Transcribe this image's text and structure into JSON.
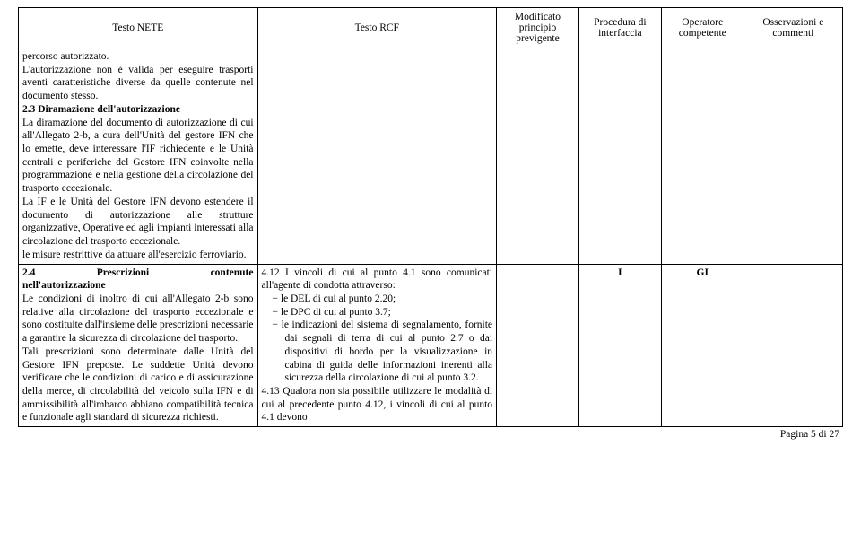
{
  "headers": {
    "c1": "Testo NETE",
    "c2": "Testo RCF",
    "c3": "Modificato principio previgente",
    "c4": "Procedura di interfaccia",
    "c5": "Operatore competente",
    "c6": "Osservazioni e commenti"
  },
  "row1": {
    "c1_p1": "percorso autorizzato.",
    "c1_p2": "L'autorizzazione non è valida per eseguire trasporti aventi caratteristiche diverse da quelle contenute nel documento stesso.",
    "c1_p3_title": "2.3 Diramazione dell'autorizzazione",
    "c1_p3_body": "La diramazione del documento di autorizzazione di cui all'Allegato 2-b, a cura dell'Unità del gestore IFN che lo emette, deve interessare l'IF richiedente e le Unità centrali e periferiche del Gestore IFN coinvolte nella programmazione e nella gestione della circolazione del trasporto eccezionale.",
    "c1_p4": "La IF e le Unità del Gestore IFN devono estendere il documento di autorizzazione alle strutture organizzative, Operative ed agli impianti interessati alla circolazione del trasporto eccezionale.",
    "c1_p5": "le misure restrittive da attuare all'esercizio ferroviario."
  },
  "row2": {
    "c1_title_a": "2.4",
    "c1_title_b": "Prescrizioni",
    "c1_title_c": "contenute",
    "c1_title_d": "nell'autorizzazione",
    "c1_p1": "Le condizioni di inoltro di cui all'Allegato 2-b sono relative alla circolazione del trasporto eccezionale e sono costituite dall'insieme delle prescrizioni necessarie a garantire la sicurezza di circolazione del trasporto.",
    "c1_p2": "Tali prescrizioni sono determinate dalle Unità del Gestore IFN preposte. Le suddette Unità devono verificare che le condizioni di carico e di assicurazione della merce, di circolabilità del veicolo sulla IFN e di ammissibilità all'imbarco abbiano compatibilità tecnica e funzionale agli standard di sicurezza richiesti.",
    "c2_p1": "4.12 I vincoli di cui al punto 4.1 sono comunicati all'agente di condotta attraverso:",
    "c2_li1": "−  le DEL di cui al punto 2.20;",
    "c2_li2": "−  le DPC di cui al punto 3.7;",
    "c2_li3": "−  le indicazioni del sistema di segnalamento, fornite dai segnali di terra di cui al punto 2.7 o dai dispositivi di bordo per la visualizzazione in cabina di guida delle informazioni inerenti alla sicurezza della circolazione di cui al punto 3.2.",
    "c2_p2": "4.13 Qualora non sia possibile utilizzare le modalità di cui al precedente punto 4.12, i vincoli di cui al punto 4.1 devono",
    "c4": "I",
    "c5": "GI"
  },
  "footer": "Pagina 5 di 27"
}
